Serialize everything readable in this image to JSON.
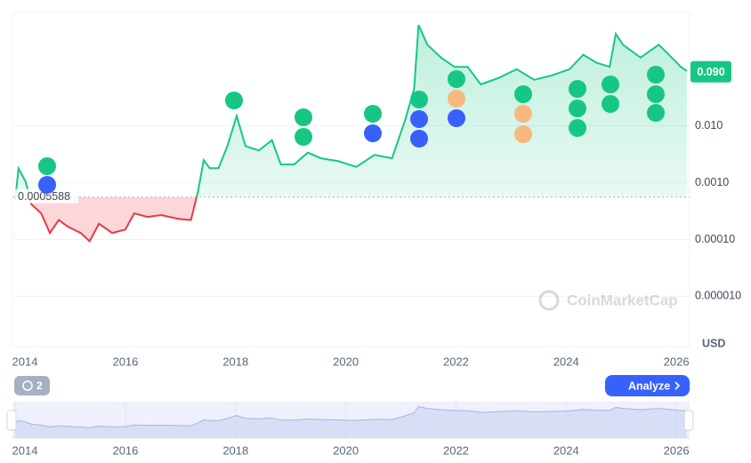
{
  "chart_data": {
    "type": "line",
    "log_scale": true,
    "grid": true,
    "x": [
      2014.0,
      2014.06,
      2014.19,
      2014.29,
      2014.47,
      2014.63,
      2014.79,
      2014.95,
      2015.19,
      2015.35,
      2015.52,
      2015.76,
      2016.0,
      2016.16,
      2016.4,
      2016.65,
      2016.97,
      2017.19,
      2017.32,
      2017.42,
      2017.53,
      2017.69,
      2017.85,
      2018.02,
      2018.18,
      2018.42,
      2018.66,
      2018.82,
      2019.06,
      2019.31,
      2019.55,
      2019.87,
      2020.19,
      2020.52,
      2020.84,
      2021.08,
      2021.24,
      2021.32,
      2021.48,
      2021.73,
      2021.97,
      2022.21,
      2022.45,
      2022.77,
      2023.1,
      2023.42,
      2023.74,
      2024.06,
      2024.31,
      2024.55,
      2024.79,
      2024.9,
      2025.03,
      2025.35,
      2025.68,
      2025.84,
      2026.08,
      2026.19
    ],
    "series": [
      {
        "color": "#16c784",
        "values": [
          0.000505,
          0.00178,
          0.00104,
          0.00042,
          0.00029,
          0.00013,
          0.00022,
          0.00017,
          0.00013,
          9.3e-05,
          0.00019,
          0.00013,
          0.00015,
          0.00029,
          0.00025,
          0.00027,
          0.00023,
          0.00022,
          0.00072,
          0.0025,
          0.0018,
          0.0018,
          0.0044,
          0.015,
          0.0044,
          0.0037,
          0.0056,
          0.0021,
          0.0021,
          0.0034,
          0.0027,
          0.0024,
          0.0019,
          0.0031,
          0.0027,
          0.013,
          0.045,
          0.6,
          0.27,
          0.16,
          0.11,
          0.11,
          0.054,
          0.07,
          0.1,
          0.065,
          0.078,
          0.1,
          0.18,
          0.13,
          0.11,
          0.42,
          0.27,
          0.16,
          0.27,
          0.19,
          0.11,
          0.093
        ]
      }
    ],
    "down_color": "#ea3943",
    "baseline": 0.0005588,
    "current_price": {
      "value": 0.09,
      "label": "0.090"
    },
    "xlim": [
      2013.95,
      2026.24
    ],
    "ylim": [
      1.3e-06,
      1
    ],
    "xticks": [
      2014,
      2016,
      2018,
      2020,
      2022,
      2024,
      2026
    ],
    "yticks": [
      {
        "value": 1e-05,
        "label": "0.000010"
      },
      {
        "value": 0.0001,
        "label": "0.00010"
      },
      {
        "value": 0.001,
        "label": "0.0010"
      },
      {
        "value": 0.01,
        "label": "0.010"
      }
    ],
    "currency": "USD",
    "watermark": "CoinMarketCap",
    "analyze_button": "Analyze",
    "history_count": 2
  }
}
